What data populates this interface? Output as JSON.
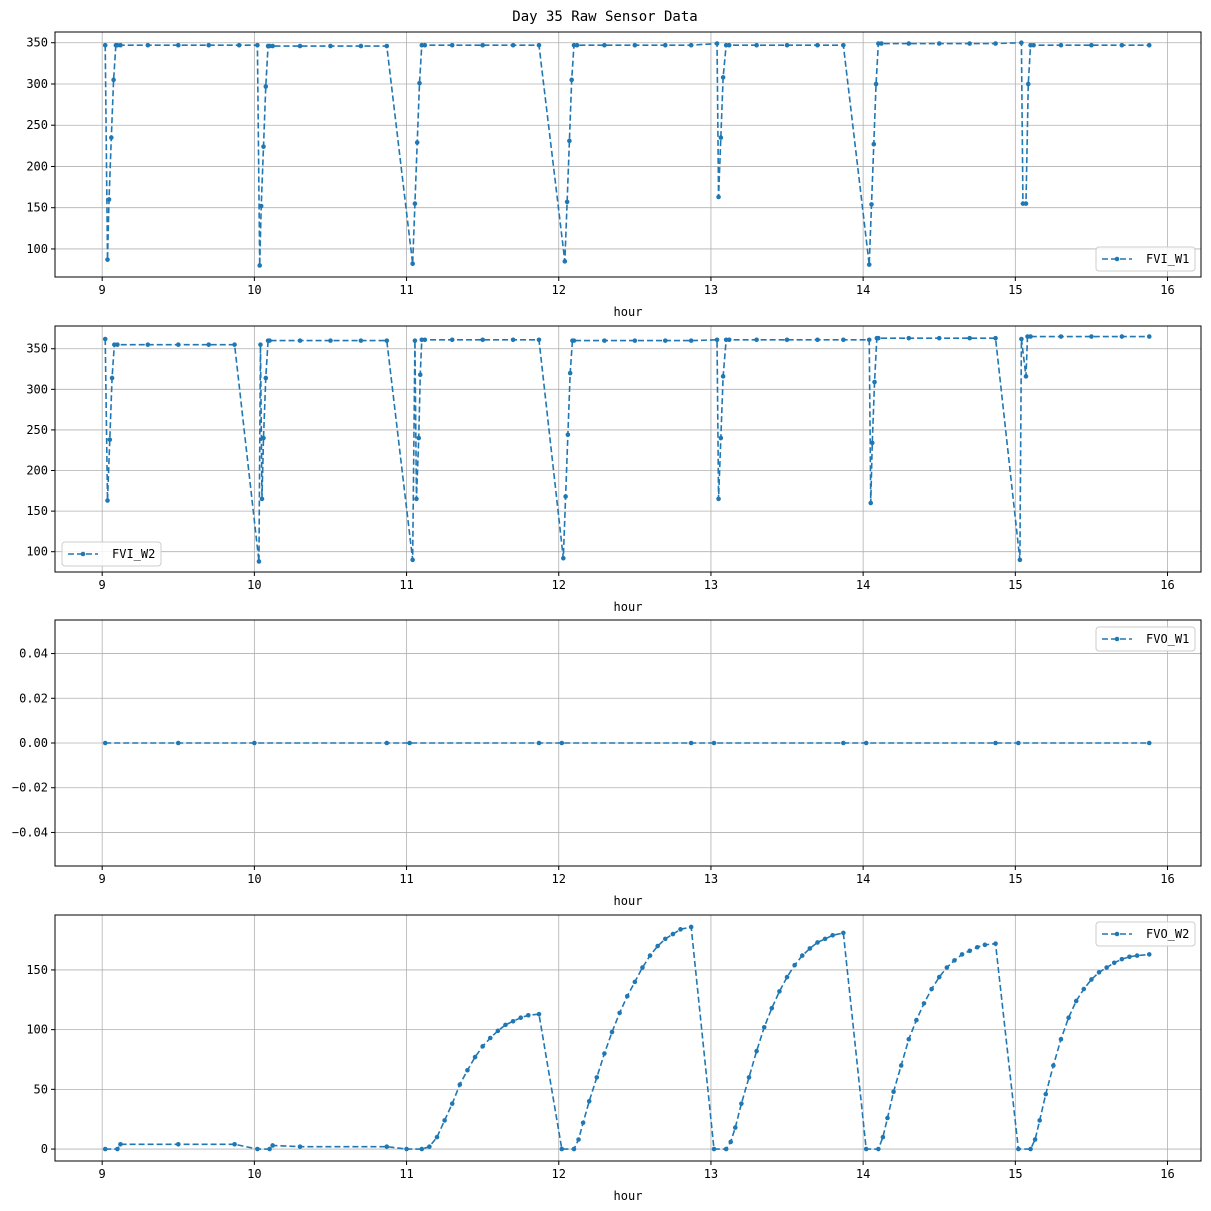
{
  "figure": {
    "title": "Day 35 Raw Sensor Data",
    "line_color": "#1f77b4",
    "grid_color": "#b0b0b0"
  },
  "chart_data": [
    {
      "type": "line",
      "line_style": "dashed",
      "marker": "circle",
      "xlabel": "hour",
      "ylabel": "",
      "xlim": [
        8.69,
        16.22
      ],
      "ylim": [
        66,
        363
      ],
      "xticks": [
        9,
        10,
        11,
        12,
        13,
        14,
        15,
        16
      ],
      "yticks": [
        100,
        150,
        200,
        250,
        300,
        350
      ],
      "ytick_labels": [
        "100",
        "150",
        "200",
        "250",
        "300",
        "350"
      ],
      "grid": true,
      "legend_position": "lower right",
      "series": [
        {
          "name": "FVI_W1",
          "x": [
            9.02,
            9.035,
            9.045,
            9.06,
            9.075,
            9.09,
            9.1,
            9.12,
            9.3,
            9.5,
            9.7,
            9.9,
            10.02,
            10.035,
            10.045,
            10.06,
            10.075,
            10.09,
            10.1,
            10.12,
            10.3,
            10.5,
            10.7,
            10.87,
            11.04,
            11.055,
            11.07,
            11.085,
            11.1,
            11.12,
            11.3,
            11.5,
            11.7,
            11.87,
            12.04,
            12.055,
            12.07,
            12.085,
            12.1,
            12.12,
            12.3,
            12.5,
            12.7,
            12.87,
            13.04,
            13.05,
            13.065,
            13.08,
            13.1,
            13.12,
            13.3,
            13.5,
            13.7,
            13.87,
            14.04,
            14.055,
            14.07,
            14.085,
            14.1,
            14.12,
            14.3,
            14.5,
            14.7,
            14.87,
            15.04,
            15.05,
            15.07,
            15.085,
            15.1,
            15.12,
            15.3,
            15.5,
            15.7,
            15.88
          ],
          "y": [
            347,
            87,
            160,
            235,
            305,
            347,
            347,
            347,
            347,
            347,
            347,
            347,
            347,
            80,
            152,
            224,
            297,
            346,
            346,
            346,
            346,
            346,
            346,
            346,
            82,
            155,
            229,
            301,
            347,
            347,
            347,
            347,
            347,
            347,
            85,
            157,
            231,
            305,
            347,
            347,
            347,
            347,
            347,
            347,
            349,
            163,
            235,
            308,
            347,
            347,
            347,
            347,
            347,
            347,
            81,
            154,
            227,
            300,
            349,
            349,
            349,
            349,
            349,
            349,
            350,
            155,
            155,
            300,
            347,
            347,
            347,
            347,
            347,
            347
          ]
        }
      ]
    },
    {
      "type": "line",
      "line_style": "dashed",
      "marker": "circle",
      "xlabel": "hour",
      "ylabel": "",
      "xlim": [
        8.69,
        16.22
      ],
      "ylim": [
        75,
        378
      ],
      "xticks": [
        9,
        10,
        11,
        12,
        13,
        14,
        15,
        16
      ],
      "yticks": [
        100,
        150,
        200,
        250,
        300,
        350
      ],
      "ytick_labels": [
        "100",
        "150",
        "200",
        "250",
        "300",
        "350"
      ],
      "grid": true,
      "legend_position": "lower left",
      "series": [
        {
          "name": "FVI_W2",
          "x": [
            9.02,
            9.035,
            9.05,
            9.065,
            9.08,
            9.1,
            9.3,
            9.5,
            9.7,
            9.87,
            10.03,
            10.04,
            10.05,
            10.06,
            10.075,
            10.09,
            10.1,
            10.3,
            10.5,
            10.7,
            10.87,
            11.04,
            11.055,
            11.065,
            11.08,
            11.09,
            11.1,
            11.12,
            11.3,
            11.5,
            11.7,
            11.87,
            12.03,
            12.045,
            12.06,
            12.075,
            12.09,
            12.1,
            12.3,
            12.5,
            12.7,
            12.87,
            13.04,
            13.05,
            13.065,
            13.08,
            13.1,
            13.12,
            13.3,
            13.5,
            13.7,
            13.87,
            14.04,
            14.05,
            14.06,
            14.075,
            14.09,
            14.1,
            14.3,
            14.5,
            14.7,
            14.87,
            15.03,
            15.04,
            15.07,
            15.08,
            15.1,
            15.3,
            15.5,
            15.7,
            15.88
          ],
          "y": [
            362,
            163,
            238,
            314,
            355,
            355,
            355,
            355,
            355,
            355,
            88,
            355,
            165,
            240,
            314,
            360,
            360,
            360,
            360,
            360,
            360,
            90,
            360,
            165,
            240,
            318,
            361,
            361,
            361,
            361,
            361,
            361,
            92,
            168,
            244,
            320,
            360,
            360,
            360,
            360,
            360,
            360,
            361,
            165,
            240,
            316,
            361,
            361,
            361,
            361,
            361,
            361,
            361,
            160,
            234,
            309,
            363,
            363,
            363,
            363,
            363,
            363,
            90,
            362,
            316,
            365,
            365,
            365,
            365,
            365,
            365
          ]
        }
      ]
    },
    {
      "type": "line",
      "line_style": "dashed",
      "marker": "circle",
      "xlabel": "hour",
      "ylabel": "",
      "xlim": [
        8.69,
        16.22
      ],
      "ylim": [
        -0.055,
        0.055
      ],
      "xticks": [
        9,
        10,
        11,
        12,
        13,
        14,
        15,
        16
      ],
      "yticks": [
        -0.04,
        -0.02,
        0.0,
        0.02,
        0.04
      ],
      "ytick_labels": [
        "−0.04",
        "−0.02",
        "0.00",
        "0.02",
        "0.04"
      ],
      "grid": true,
      "legend_position": "upper right",
      "series": [
        {
          "name": "FVO_W1",
          "x": [
            9.02,
            9.5,
            10.0,
            10.87,
            11.02,
            11.87,
            12.02,
            12.87,
            13.02,
            13.87,
            14.02,
            14.87,
            15.02,
            15.88
          ],
          "y": [
            0,
            0,
            0,
            0,
            0,
            0,
            0,
            0,
            0,
            0,
            0,
            0,
            0,
            0
          ]
        }
      ]
    },
    {
      "type": "line",
      "line_style": "dashed",
      "marker": "circle",
      "xlabel": "hour",
      "ylabel": "",
      "xlim": [
        8.69,
        16.22
      ],
      "ylim": [
        -10,
        196
      ],
      "xticks": [
        9,
        10,
        11,
        12,
        13,
        14,
        15,
        16
      ],
      "yticks": [
        0,
        50,
        100,
        150
      ],
      "ytick_labels": [
        "0",
        "50",
        "100",
        "150"
      ],
      "grid": true,
      "legend_position": "upper right",
      "series": [
        {
          "name": "FVO_W2",
          "x": [
            9.02,
            9.1,
            9.12,
            9.5,
            9.87,
            10.02,
            10.1,
            10.12,
            10.3,
            10.87,
            11.0,
            11.1,
            11.15,
            11.2,
            11.25,
            11.3,
            11.35,
            11.4,
            11.45,
            11.5,
            11.55,
            11.6,
            11.65,
            11.7,
            11.75,
            11.8,
            11.87,
            12.02,
            12.1,
            12.13,
            12.16,
            12.2,
            12.25,
            12.3,
            12.35,
            12.4,
            12.45,
            12.5,
            12.55,
            12.6,
            12.65,
            12.7,
            12.75,
            12.8,
            12.87,
            13.02,
            13.1,
            13.13,
            13.16,
            13.2,
            13.25,
            13.3,
            13.35,
            13.4,
            13.45,
            13.5,
            13.55,
            13.6,
            13.65,
            13.7,
            13.75,
            13.8,
            13.87,
            14.02,
            14.1,
            14.13,
            14.16,
            14.2,
            14.25,
            14.3,
            14.35,
            14.4,
            14.45,
            14.5,
            14.55,
            14.6,
            14.65,
            14.7,
            14.75,
            14.8,
            14.87,
            15.02,
            15.1,
            15.13,
            15.16,
            15.2,
            15.25,
            15.3,
            15.35,
            15.4,
            15.45,
            15.5,
            15.55,
            15.6,
            15.65,
            15.7,
            15.75,
            15.8,
            15.88
          ],
          "y": [
            0,
            0,
            4,
            4,
            4,
            0,
            0,
            3,
            2,
            2,
            0,
            0,
            2,
            10,
            24,
            38,
            54,
            66,
            77,
            86,
            93,
            99,
            104,
            107,
            110,
            112,
            113,
            0,
            0,
            8,
            22,
            40,
            60,
            80,
            98,
            114,
            128,
            140,
            152,
            162,
            170,
            176,
            180,
            184,
            186,
            0,
            0,
            6,
            18,
            38,
            60,
            82,
            102,
            118,
            132,
            144,
            154,
            162,
            168,
            173,
            176,
            179,
            181,
            0,
            0,
            10,
            26,
            48,
            70,
            92,
            108,
            122,
            134,
            144,
            152,
            158,
            163,
            166,
            169,
            171,
            172,
            0,
            0,
            8,
            24,
            46,
            70,
            92,
            110,
            124,
            134,
            142,
            148,
            152,
            156,
            159,
            161,
            162,
            163
          ]
        }
      ]
    }
  ]
}
